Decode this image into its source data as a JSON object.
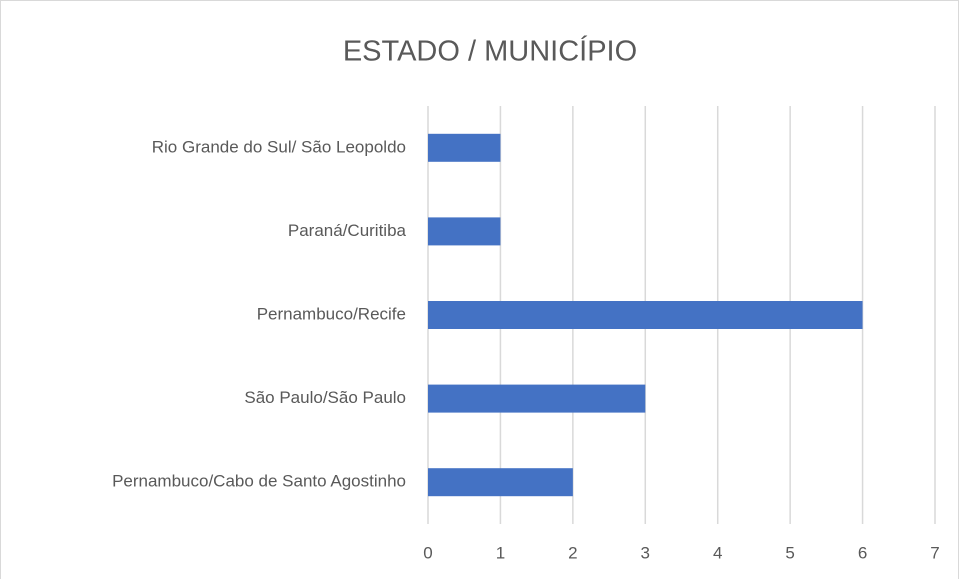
{
  "chart_data": {
    "type": "bar",
    "orientation": "horizontal",
    "title": "ESTADO / MUNICÍPIO",
    "categories": [
      "Rio Grande do Sul/ São Leopoldo",
      "Paraná/Curitiba",
      "Pernambuco/Recife",
      "São Paulo/São Paulo",
      "Pernambuco/Cabo de Santo Agostinho"
    ],
    "values": [
      1,
      1,
      6,
      3,
      2
    ],
    "color": "#4472c4",
    "xlim": [
      0,
      7
    ],
    "xticks": [
      0,
      1,
      2,
      3,
      4,
      5,
      6,
      7
    ],
    "grid": true
  }
}
